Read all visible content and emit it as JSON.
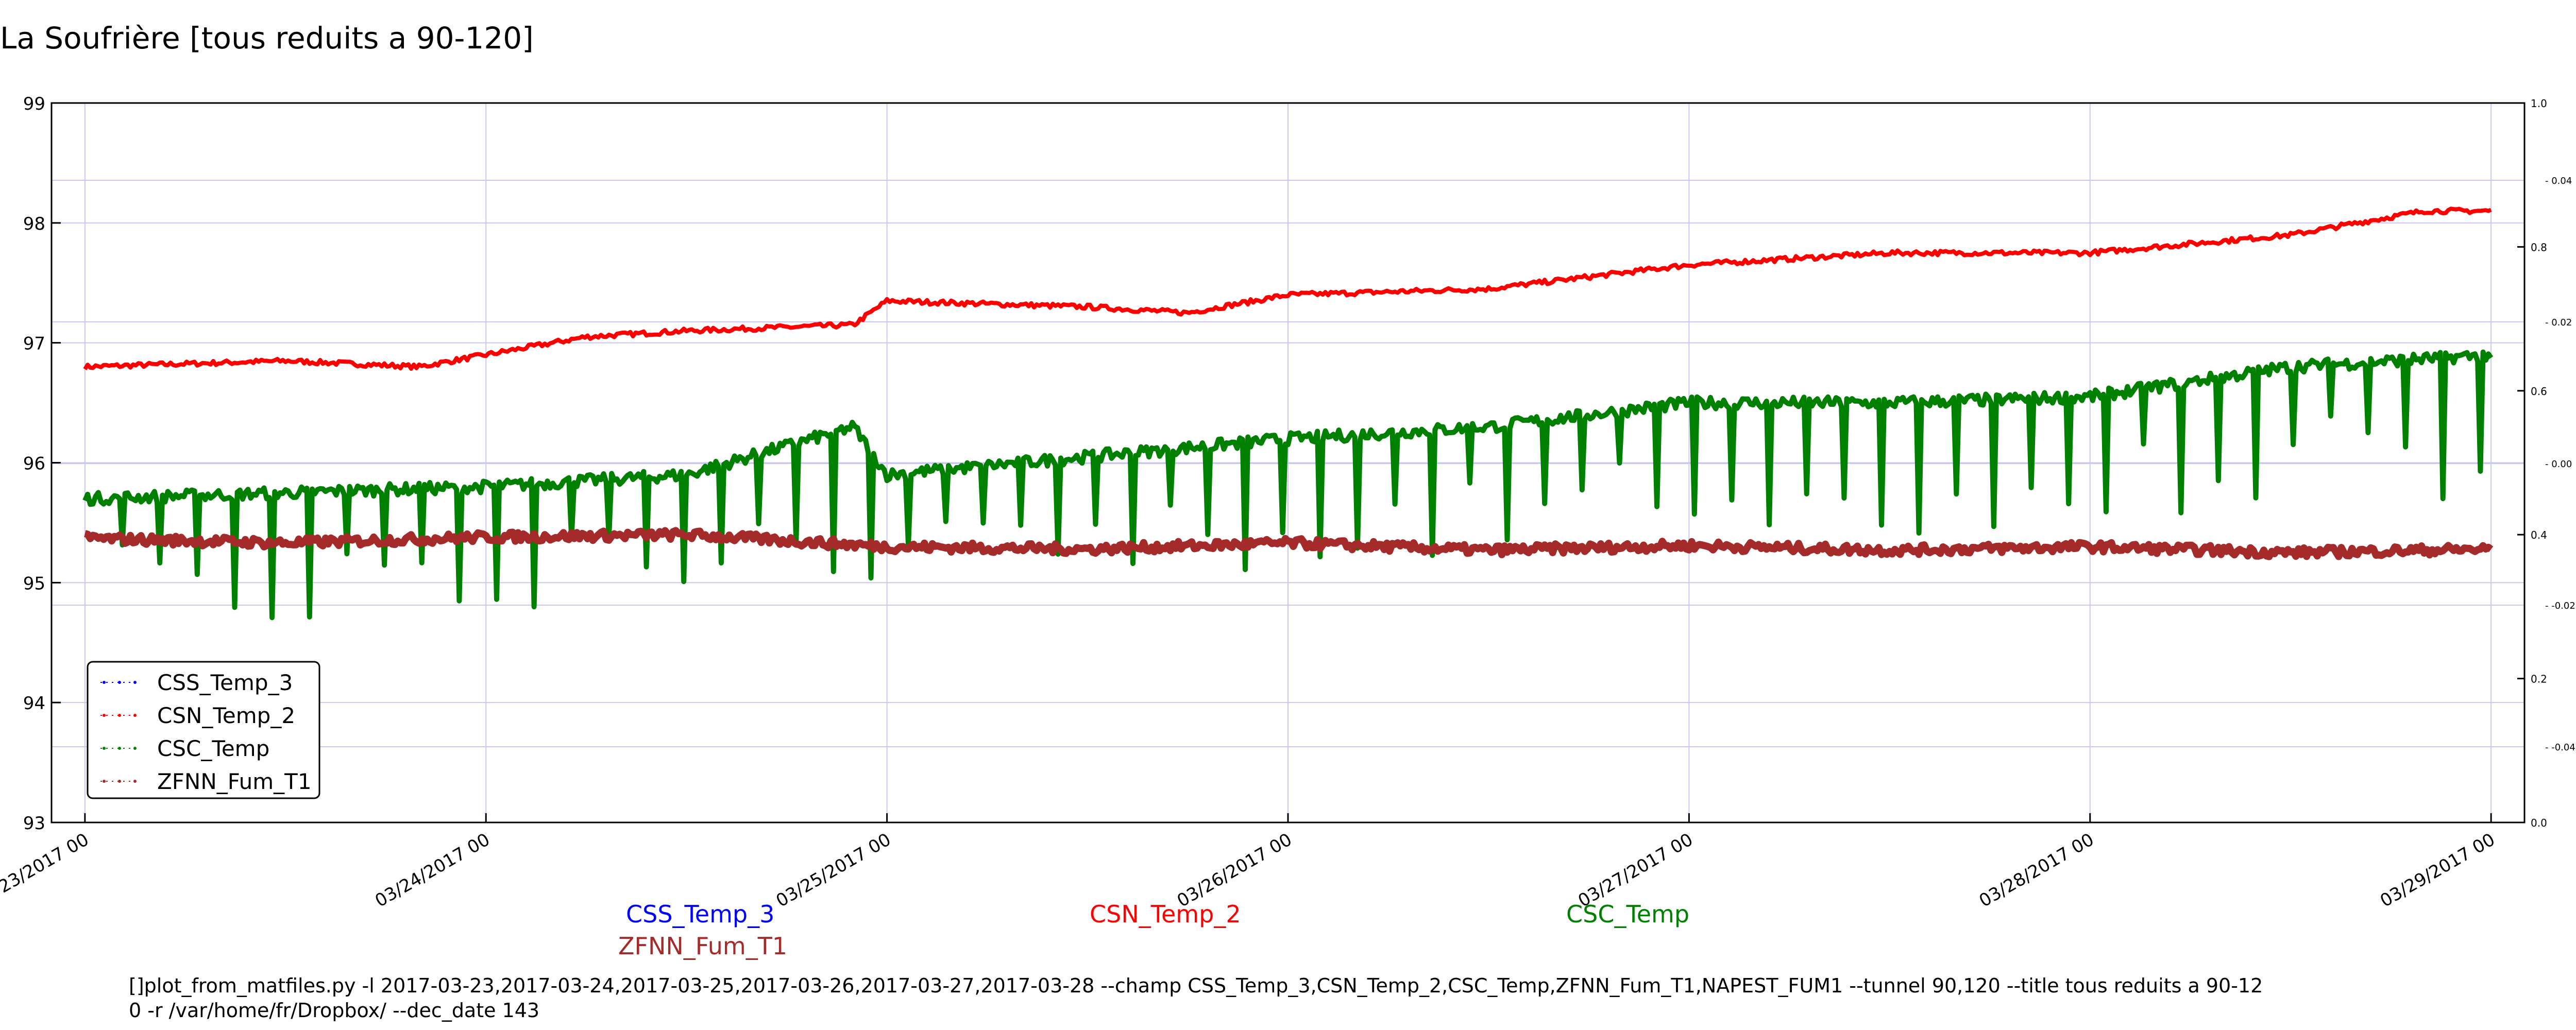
{
  "page_title": "La Soufrière [tous reduits a 90-120]",
  "series_labels_below": {
    "css_temp_3": "CSS_Temp_3",
    "zfnn_fum_t1": "ZFNN_Fum_T1",
    "csn_temp_2": "CSN_Temp_2",
    "csc_temp": "CSC_Temp"
  },
  "command_line": {
    "line1": "[]plot_from_matfiles.py -l 2017-03-23,2017-03-24,2017-03-25,2017-03-26,2017-03-27,2017-03-28 --champ CSS_Temp_3,CSN_Temp_2,CSC_Temp,ZFNN_Fum_T1,NAPEST_FUM1 --tunnel 90,120 --title tous reduits a 90-12",
    "line2": "0 -r /var/home/fr/Dropbox/ --dec_date 143"
  },
  "colors": {
    "css_temp_3": "#0000ff",
    "csn_temp_2": "#ff0000",
    "csc_temp": "#008000",
    "zfnn_fum_t1": "#a52a2a",
    "grid": "#c8c8f0"
  },
  "chart_data": {
    "type": "line",
    "title": "",
    "xlabel": "",
    "ylabel": "",
    "ylim": [
      93,
      99
    ],
    "xlim": [
      "2017-03-22 22:00",
      "2017-03-29 02:00"
    ],
    "x_ticks": [
      "03/23/2017 00",
      "03/24/2017 00",
      "03/25/2017 00",
      "03/26/2017 00",
      "03/27/2017 00",
      "03/28/2017 00",
      "03/29/2017 00"
    ],
    "y_ticks": [
      93,
      94,
      95,
      96,
      97,
      98,
      99
    ],
    "right_axis_outer_ticks": [
      "0.0",
      "0.2",
      "0.4",
      "0.6",
      "0.8",
      "1.0"
    ],
    "right_axis_inner_ticks": [
      "-0.04",
      "-0.02",
      "0.00",
      "0.02",
      "0.04"
    ],
    "grid": true,
    "legend": {
      "position": "bottom-left",
      "entries": [
        "CSS_Temp_3",
        "CSN_Temp_2",
        "CSC_Temp",
        "ZFNN_Fum_T1"
      ]
    },
    "series": [
      {
        "name": "CSS_Temp_3",
        "x": [],
        "values": []
      },
      {
        "name": "CSN_Temp_2",
        "x": [
          "2017-03-23 00:00",
          "2017-03-23 12:00",
          "2017-03-23 20:00",
          "2017-03-24 00:00",
          "2017-03-24 06:00",
          "2017-03-24 12:00",
          "2017-03-24 22:00",
          "2017-03-25 00:00",
          "2017-03-25 12:00",
          "2017-03-25 18:00",
          "2017-03-26 00:00",
          "2017-03-26 12:00",
          "2017-03-27 00:00",
          "2017-03-27 12:00",
          "2017-03-28 00:00",
          "2017-03-28 12:00",
          "2017-03-28 20:00",
          "2017-03-29 00:00"
        ],
        "values": [
          96.8,
          96.85,
          96.8,
          96.9,
          97.05,
          97.1,
          97.15,
          97.35,
          97.3,
          97.25,
          97.4,
          97.45,
          97.65,
          97.75,
          97.75,
          97.9,
          98.1,
          98.1
        ]
      },
      {
        "name": "CSC_Temp",
        "x": [
          "2017-03-23 00:00",
          "2017-03-23 12:00",
          "2017-03-24 00:00",
          "2017-03-24 12:00",
          "2017-03-24 22:00",
          "2017-03-25 00:00",
          "2017-03-25 12:00",
          "2017-03-26 00:00",
          "2017-03-26 12:00",
          "2017-03-27 00:00",
          "2017-03-27 12:00",
          "2017-03-28 00:00",
          "2017-03-28 12:00",
          "2017-03-29 00:00"
        ],
        "values": [
          95.7,
          95.75,
          95.8,
          95.9,
          96.3,
          95.9,
          96.05,
          96.2,
          96.3,
          96.5,
          96.5,
          96.55,
          96.8,
          96.9
        ]
      },
      {
        "name": "ZFNN_Fum_T1",
        "x": [
          "2017-03-23 00:00",
          "2017-03-23 12:00",
          "2017-03-24 00:00",
          "2017-03-24 12:00",
          "2017-03-25 00:00",
          "2017-03-25 12:00",
          "2017-03-26 00:00",
          "2017-03-26 12:00",
          "2017-03-27 00:00",
          "2017-03-27 12:00",
          "2017-03-28 00:00",
          "2017-03-28 12:00",
          "2017-03-29 00:00"
        ],
        "values": [
          95.37,
          95.33,
          95.38,
          95.4,
          95.3,
          95.28,
          95.33,
          95.27,
          95.31,
          95.27,
          95.3,
          95.25,
          95.28
        ]
      }
    ]
  }
}
